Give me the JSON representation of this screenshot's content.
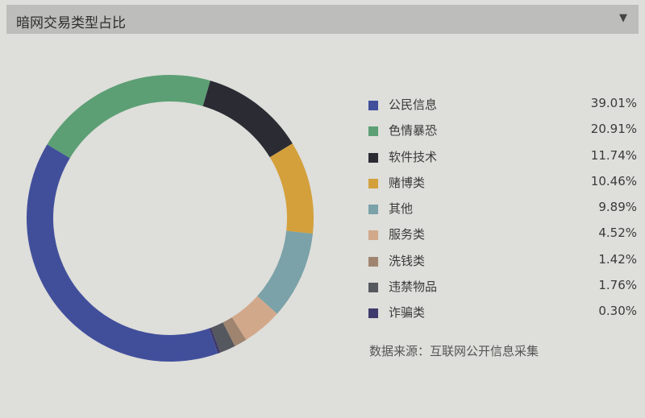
{
  "header": {
    "title": "暗网交易类型占比",
    "caret_icon": "triangle-down-icon"
  },
  "chart_data": {
    "type": "pie",
    "variant": "donut",
    "title": "暗网交易类型占比",
    "legend_position": "right",
    "categories": [
      "公民信息",
      "色情暴恐",
      "软件技术",
      "赌博类",
      "其他",
      "服务类",
      "洗钱类",
      "违禁物品",
      "诈骗类"
    ],
    "values": [
      39.01,
      20.91,
      11.74,
      10.46,
      9.89,
      4.52,
      1.42,
      1.76,
      0.3
    ],
    "labels": [
      "39.01%",
      "20.91%",
      "11.74%",
      "10.46%",
      "9.89%",
      "4.52%",
      "1.42%",
      "1.76%",
      "0.30%"
    ],
    "colors": [
      "#414f9b",
      "#5c9f74",
      "#2b2b34",
      "#d3a03c",
      "#7aa2a8",
      "#d2a88b",
      "#9f8570",
      "#56585f",
      "#3f3a6c"
    ]
  },
  "source": "数据来源：互联网公开信息采集"
}
